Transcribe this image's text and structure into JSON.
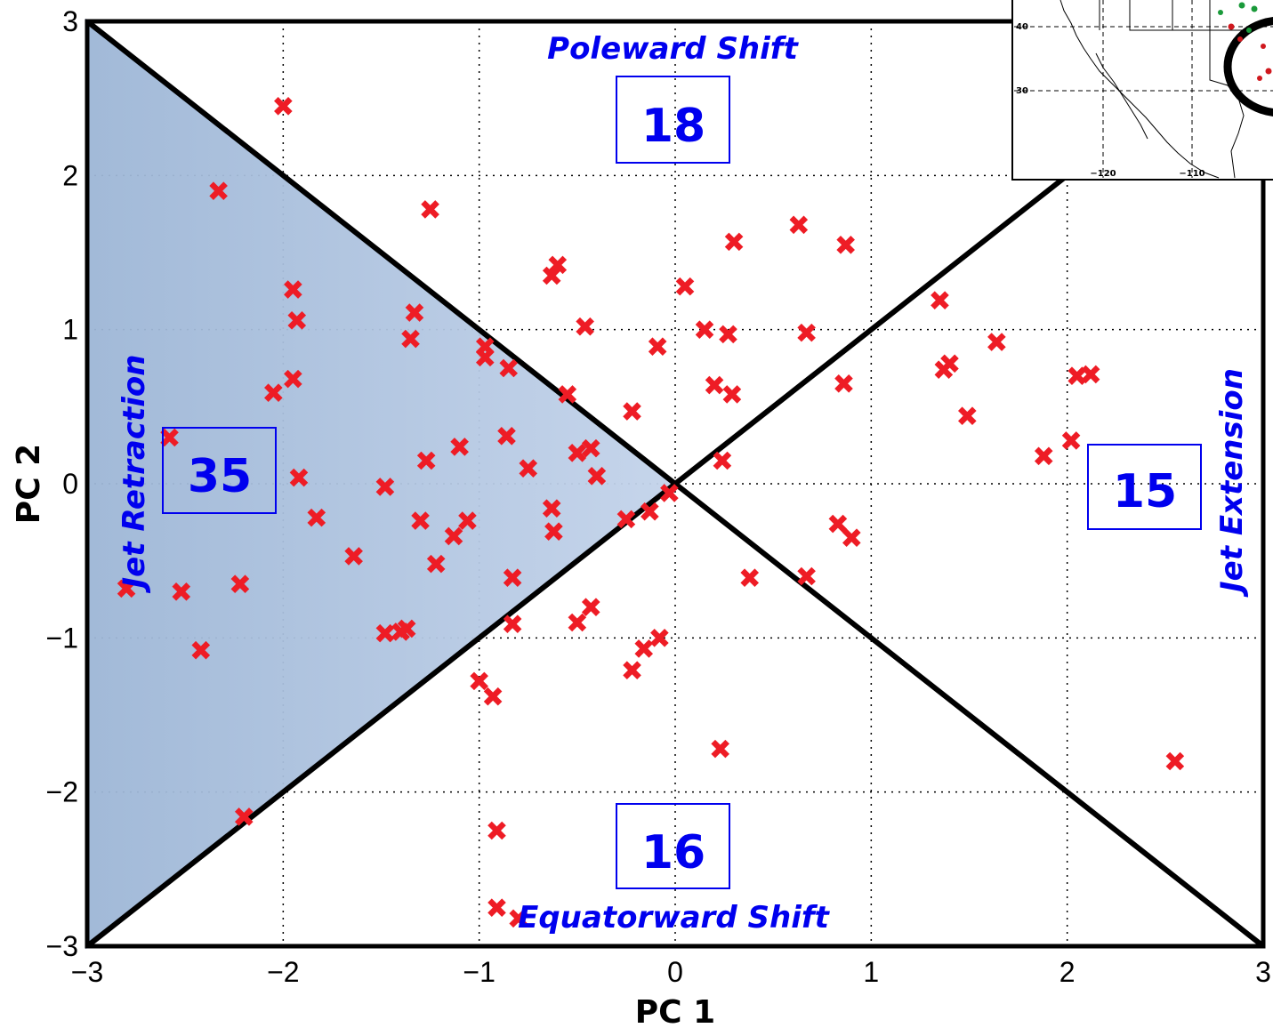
{
  "chart_data": {
    "type": "scatter",
    "title": "",
    "xlabel": "PC 1",
    "ylabel": "PC 2",
    "xlim": [
      -3,
      3
    ],
    "ylim": [
      -3,
      3
    ],
    "xticks": [
      "−3",
      "−2",
      "−1",
      "0",
      "1",
      "2",
      "3"
    ],
    "yticks": [
      "−3",
      "−2",
      "−1",
      "0",
      "1",
      "2",
      "3"
    ],
    "grid": true,
    "marker": "x",
    "marker_color": "#ee1c25",
    "points": [
      {
        "x": -2.0,
        "y": 2.45
      },
      {
        "x": -2.33,
        "y": 1.9
      },
      {
        "x": -1.25,
        "y": 1.78
      },
      {
        "x": -1.95,
        "y": 1.26
      },
      {
        "x": -1.93,
        "y": 1.06
      },
      {
        "x": -1.95,
        "y": 0.68
      },
      {
        "x": -2.05,
        "y": 0.59
      },
      {
        "x": -1.33,
        "y": 1.11
      },
      {
        "x": -1.35,
        "y": 0.94
      },
      {
        "x": -0.97,
        "y": 0.89
      },
      {
        "x": -0.97,
        "y": 0.82
      },
      {
        "x": -0.85,
        "y": 0.75
      },
      {
        "x": -0.6,
        "y": 1.42
      },
      {
        "x": -0.63,
        "y": 1.35
      },
      {
        "x": -0.46,
        "y": 1.02
      },
      {
        "x": -0.55,
        "y": 0.58
      },
      {
        "x": -0.22,
        "y": 0.47
      },
      {
        "x": -0.09,
        "y": 0.89
      },
      {
        "x": 0.05,
        "y": 1.28
      },
      {
        "x": 0.3,
        "y": 1.57
      },
      {
        "x": 0.63,
        "y": 1.68
      },
      {
        "x": 0.87,
        "y": 1.55
      },
      {
        "x": 0.15,
        "y": 1.0
      },
      {
        "x": 0.27,
        "y": 0.97
      },
      {
        "x": 0.67,
        "y": 0.98
      },
      {
        "x": 0.2,
        "y": 0.64
      },
      {
        "x": 0.29,
        "y": 0.58
      },
      {
        "x": 0.86,
        "y": 0.65
      },
      {
        "x": 0.24,
        "y": 0.15
      },
      {
        "x": 1.35,
        "y": 1.19
      },
      {
        "x": 1.64,
        "y": 0.92
      },
      {
        "x": 1.4,
        "y": 0.78
      },
      {
        "x": 1.37,
        "y": 0.74
      },
      {
        "x": 1.49,
        "y": 0.44
      },
      {
        "x": 2.05,
        "y": 0.7
      },
      {
        "x": 2.12,
        "y": 0.71
      },
      {
        "x": 2.02,
        "y": 0.28
      },
      {
        "x": 1.88,
        "y": 0.18
      },
      {
        "x": -2.58,
        "y": 0.3
      },
      {
        "x": -1.92,
        "y": 0.04
      },
      {
        "x": -1.27,
        "y": 0.15
      },
      {
        "x": -1.1,
        "y": 0.24
      },
      {
        "x": -0.86,
        "y": 0.31
      },
      {
        "x": -0.43,
        "y": 0.23
      },
      {
        "x": -0.5,
        "y": 0.2
      },
      {
        "x": -0.75,
        "y": 0.1
      },
      {
        "x": -0.4,
        "y": 0.05
      },
      {
        "x": -1.48,
        "y": -0.02
      },
      {
        "x": -1.83,
        "y": -0.22
      },
      {
        "x": -1.3,
        "y": -0.24
      },
      {
        "x": -1.06,
        "y": -0.24
      },
      {
        "x": -1.13,
        "y": -0.34
      },
      {
        "x": -0.63,
        "y": -0.16
      },
      {
        "x": -0.62,
        "y": -0.31
      },
      {
        "x": -0.25,
        "y": -0.23
      },
      {
        "x": -0.13,
        "y": -0.18
      },
      {
        "x": -0.03,
        "y": -0.06
      },
      {
        "x": -1.64,
        "y": -0.47
      },
      {
        "x": -1.22,
        "y": -0.52
      },
      {
        "x": -0.83,
        "y": -0.61
      },
      {
        "x": -2.22,
        "y": -0.65
      },
      {
        "x": -2.52,
        "y": -0.7
      },
      {
        "x": -2.8,
        "y": -0.68
      },
      {
        "x": -2.42,
        "y": -1.08
      },
      {
        "x": -1.48,
        "y": -0.97
      },
      {
        "x": -1.4,
        "y": -0.96
      },
      {
        "x": -1.37,
        "y": -0.94
      },
      {
        "x": -0.83,
        "y": -0.91
      },
      {
        "x": -0.5,
        "y": -0.9
      },
      {
        "x": -0.43,
        "y": -0.8
      },
      {
        "x": -0.08,
        "y": -1.0
      },
      {
        "x": -0.16,
        "y": -1.07
      },
      {
        "x": -0.22,
        "y": -1.21
      },
      {
        "x": 0.38,
        "y": -0.61
      },
      {
        "x": 0.67,
        "y": -0.6
      },
      {
        "x": 0.83,
        "y": -0.26
      },
      {
        "x": 0.9,
        "y": -0.35
      },
      {
        "x": -1.0,
        "y": -1.28
      },
      {
        "x": -0.93,
        "y": -1.38
      },
      {
        "x": 0.23,
        "y": -1.72
      },
      {
        "x": 2.55,
        "y": -1.8
      },
      {
        "x": -2.2,
        "y": -2.16
      },
      {
        "x": -0.91,
        "y": -2.25
      },
      {
        "x": -0.91,
        "y": -2.75
      },
      {
        "x": -0.8,
        "y": -2.82
      }
    ]
  },
  "regions": {
    "top": {
      "label": "Poleward Shift",
      "count": "18"
    },
    "bottom": {
      "label": "Equatorward Shift",
      "count": "16"
    },
    "left": {
      "label": "Jet Retraction",
      "count": "35"
    },
    "right": {
      "label": "Jet Extension",
      "count": "15"
    }
  },
  "inset_map": {
    "lat_labels": [
      "40",
      "30"
    ],
    "lon_labels": [
      "−120",
      "−110"
    ]
  },
  "colors": {
    "marker": "#ee1c25",
    "region_text": "#0000ee",
    "shaded_region": "#9db6d6",
    "region_edge": "#2a3fc9"
  }
}
